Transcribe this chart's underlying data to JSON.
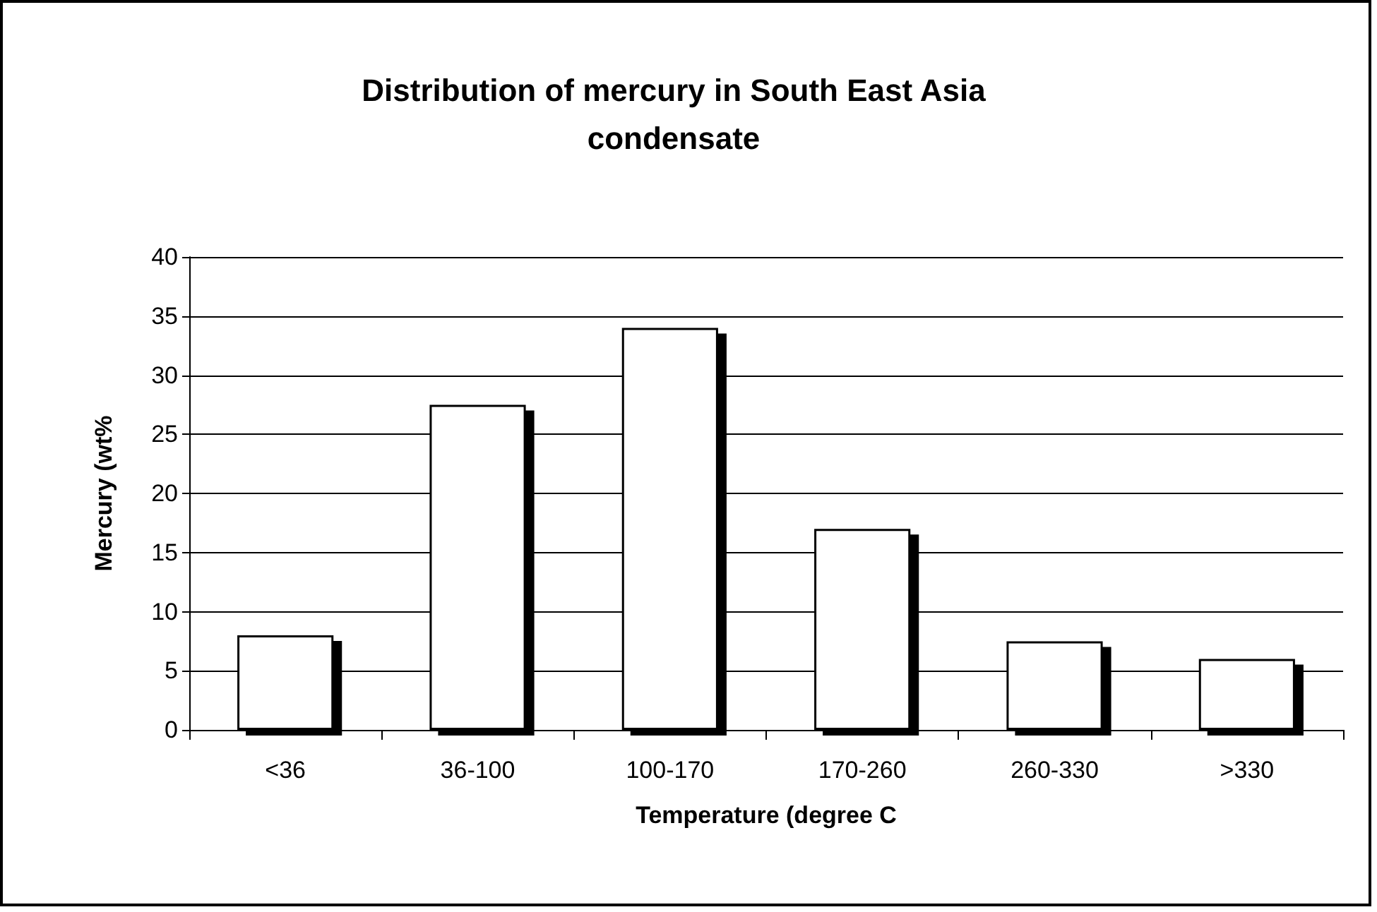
{
  "chart_data": {
    "type": "bar",
    "title": "Distribution of mercury in South East Asia\ncondensate",
    "xlabel": "Temperature (degree C",
    "ylabel": "Mercury (wt%",
    "categories": [
      "<36",
      "36-100",
      "100-170",
      "170-260",
      "260-330",
      ">330"
    ],
    "values": [
      8,
      27.5,
      34,
      17,
      7.5,
      6
    ],
    "color": "#ffffff",
    "ylim": [
      0,
      40
    ],
    "yticks": [
      0,
      5,
      10,
      15,
      20,
      25,
      30,
      35,
      40
    ],
    "grid": "y"
  }
}
